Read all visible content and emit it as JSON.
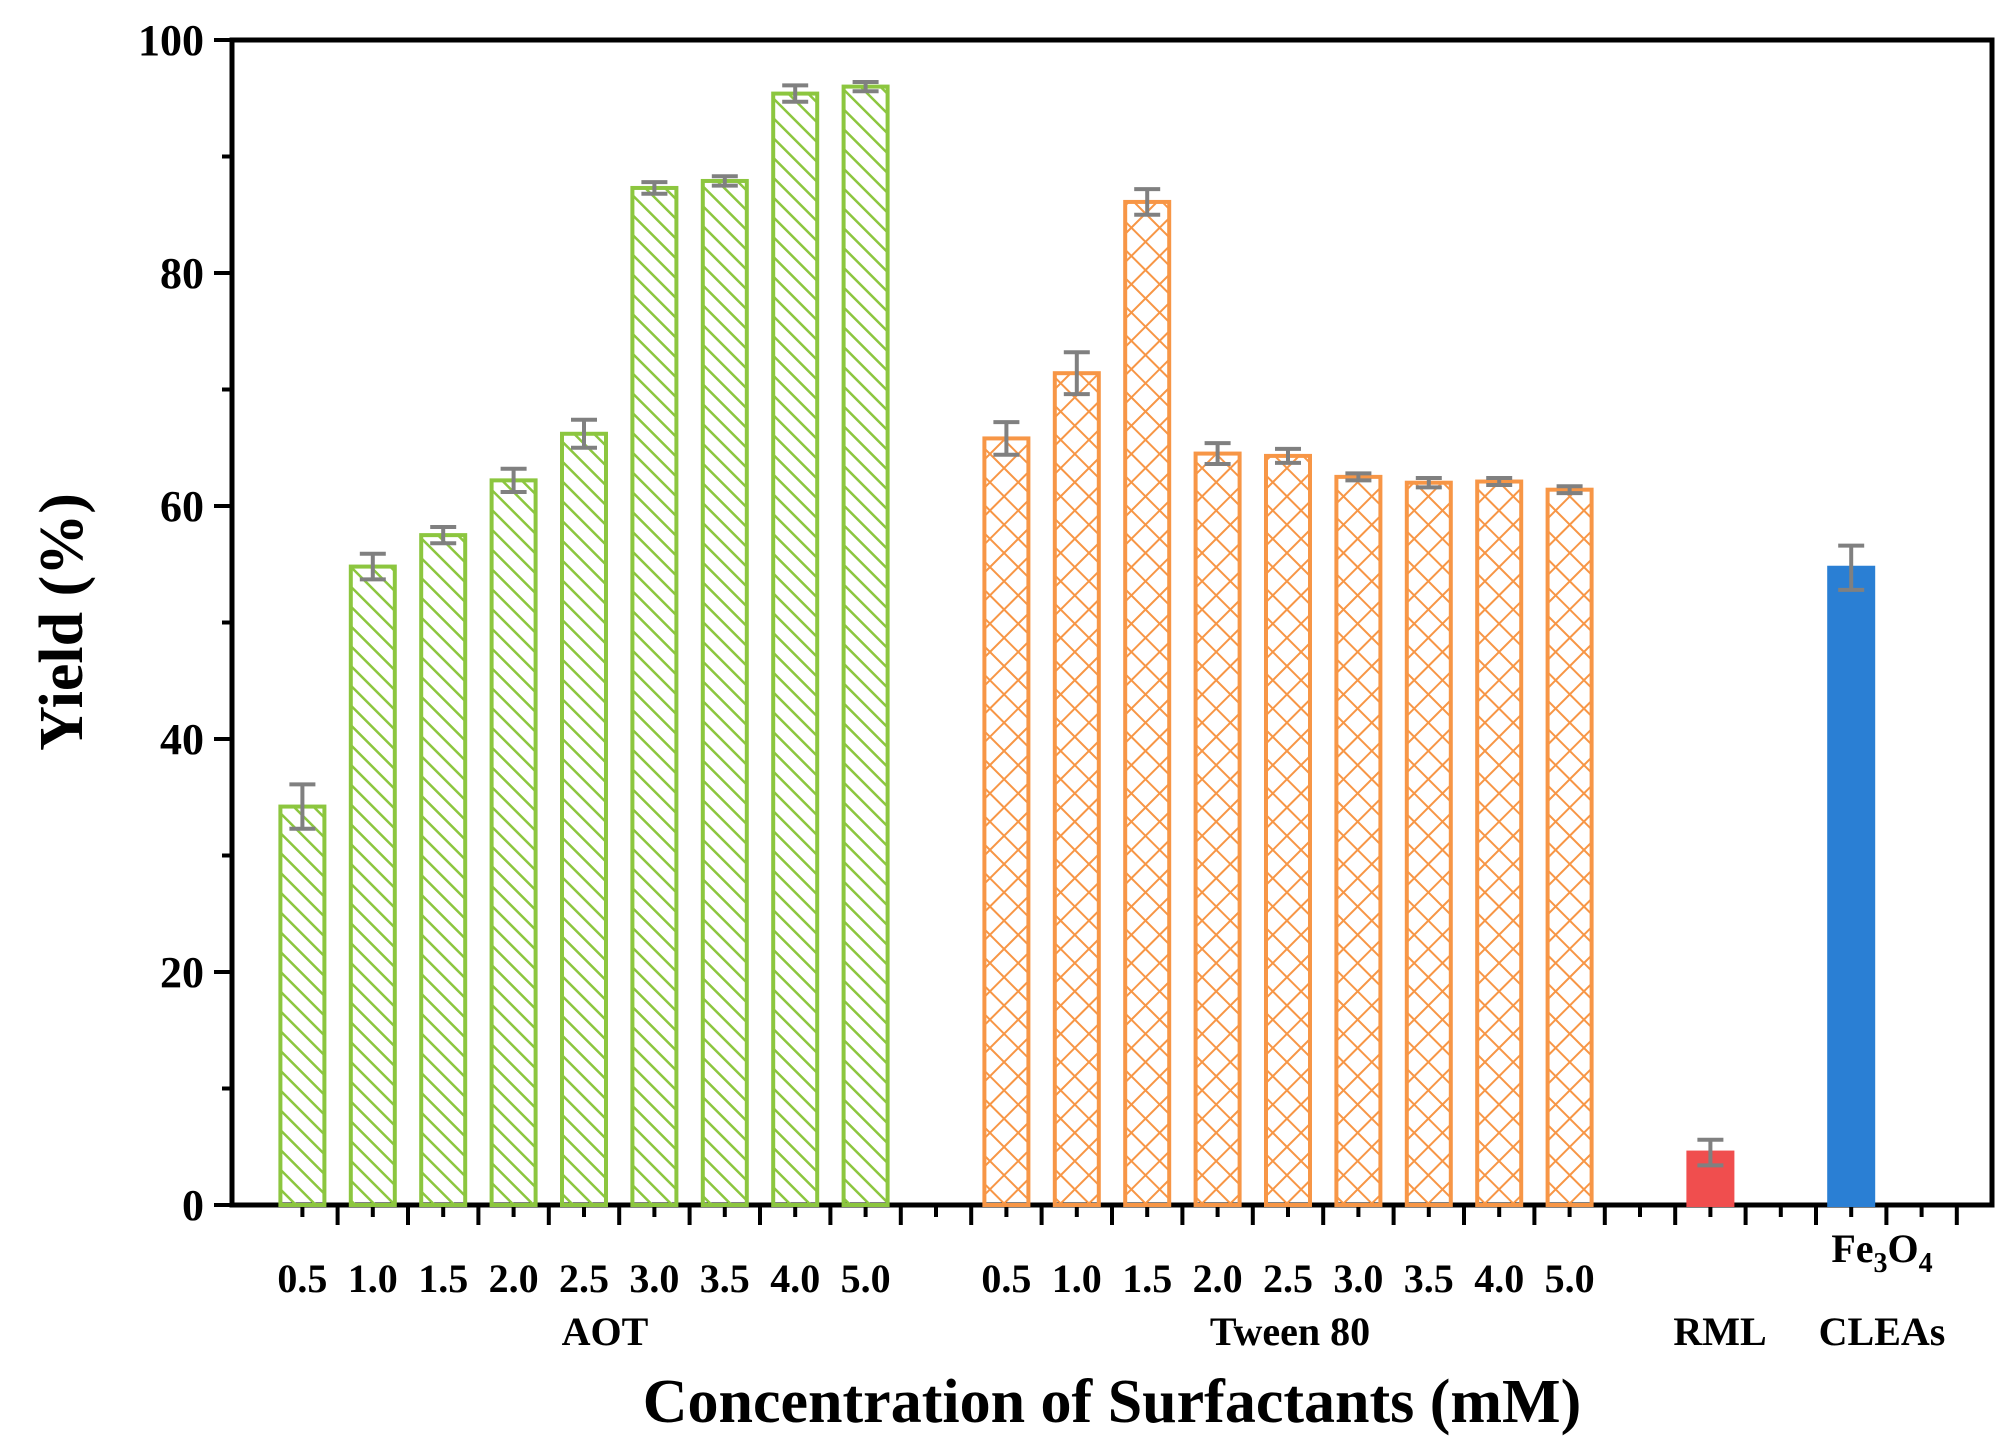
{
  "chart_data": {
    "type": "bar",
    "title": "",
    "xlabel": "Concentration of Surfactants (mM)",
    "ylabel": "Yield (%)",
    "ylim": [
      0,
      100
    ],
    "y_ticks": [
      0,
      20,
      40,
      60,
      80,
      100
    ],
    "x_ticks_count": 25,
    "groups": [
      {
        "name": "AOT",
        "color": "#8cc63f",
        "pattern": "diagonal-hatch",
        "categories": [
          "0.5",
          "1.0",
          "1.5",
          "2.0",
          "2.5",
          "3.0",
          "3.5",
          "4.0",
          "5.0"
        ],
        "values": [
          34.2,
          54.8,
          57.5,
          62.2,
          66.2,
          87.3,
          87.9,
          95.4,
          96.0
        ],
        "errors": [
          1.9,
          1.1,
          0.7,
          1.0,
          1.2,
          0.5,
          0.4,
          0.7,
          0.4
        ]
      },
      {
        "name": "Tween 80",
        "color": "#f79646",
        "pattern": "cross-hatch",
        "categories": [
          "0.5",
          "1.0",
          "1.5",
          "2.0",
          "2.5",
          "3.0",
          "3.5",
          "4.0",
          "5.0"
        ],
        "values": [
          65.8,
          71.4,
          86.1,
          64.5,
          64.3,
          62.5,
          62.0,
          62.1,
          61.4
        ],
        "errors": [
          1.4,
          1.8,
          1.1,
          0.9,
          0.6,
          0.3,
          0.4,
          0.3,
          0.3
        ]
      },
      {
        "name": "RML",
        "color": "#f04e4e",
        "pattern": "solid",
        "categories": [
          ""
        ],
        "values": [
          4.5
        ],
        "errors": [
          1.1
        ]
      },
      {
        "name_base": "Fe",
        "name_sub1": "3",
        "name_mid": "O",
        "name_sub2": "4",
        "name_line2": "CLEAs",
        "color": "#2a7fd4",
        "pattern": "solid",
        "categories": [
          ""
        ],
        "values": [
          54.7
        ],
        "errors": [
          1.9
        ]
      }
    ]
  }
}
